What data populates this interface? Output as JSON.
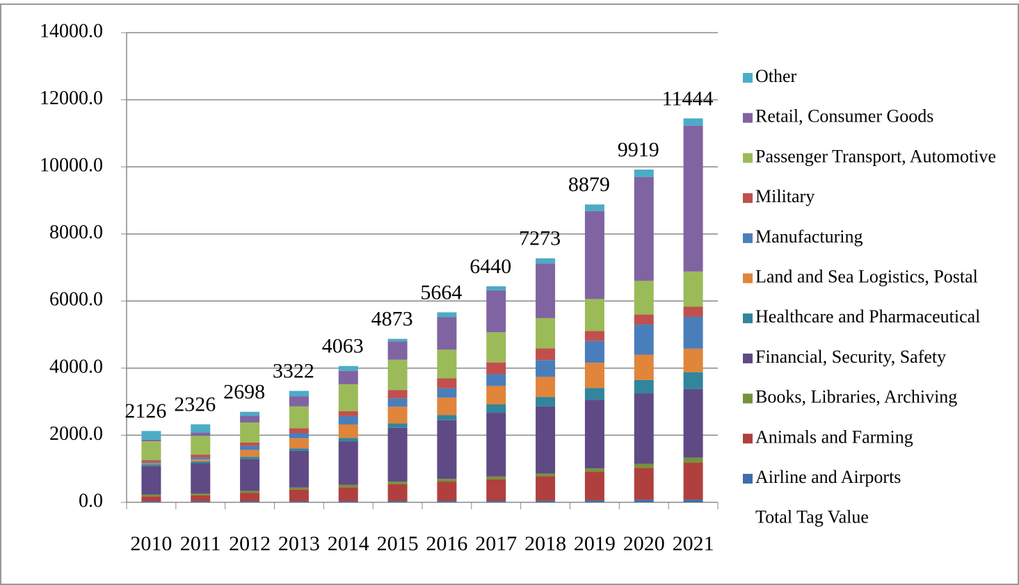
{
  "chart_data": {
    "type": "stacked_bar",
    "categories": [
      "2010",
      "2011",
      "2012",
      "2013",
      "2014",
      "2015",
      "2016",
      "2017",
      "2018",
      "2019",
      "2020",
      "2021"
    ],
    "series": [
      {
        "name": "Airline and Airports",
        "color": "#3d6ea8",
        "values": [
          30,
          30,
          30,
          30,
          30,
          40,
          40,
          40,
          50,
          60,
          80,
          80
        ]
      },
      {
        "name": "Animals and Farming",
        "color": "#b0403d",
        "values": [
          150,
          180,
          250,
          350,
          420,
          500,
          580,
          650,
          730,
          850,
          950,
          1100
        ]
      },
      {
        "name": "Books, Libraries, Archiving",
        "color": "#76923c",
        "values": [
          50,
          50,
          60,
          60,
          70,
          80,
          80,
          80,
          80,
          100,
          120,
          150
        ]
      },
      {
        "name": "Financial, Security, Safety",
        "color": "#5f4a85",
        "values": [
          850,
          900,
          950,
          1100,
          1300,
          1600,
          1750,
          1900,
          2000,
          2050,
          2100,
          2050
        ]
      },
      {
        "name": "Healthcare and Pharmaceutical",
        "color": "#31859c",
        "values": [
          50,
          60,
          70,
          70,
          100,
          130,
          150,
          250,
          280,
          350,
          400,
          500
        ]
      },
      {
        "name": "Land and Sea Logistics, Postal",
        "color": "#e0853a",
        "values": [
          40,
          60,
          200,
          300,
          400,
          500,
          520,
          550,
          600,
          750,
          750,
          700
        ]
      },
      {
        "name": "Manufacturing",
        "color": "#4a7ebb",
        "values": [
          40,
          60,
          120,
          150,
          250,
          250,
          280,
          350,
          500,
          650,
          900,
          950
        ]
      },
      {
        "name": "Military",
        "color": "#c0504d",
        "values": [
          50,
          80,
          100,
          150,
          150,
          250,
          300,
          350,
          350,
          300,
          300,
          300
        ]
      },
      {
        "name": "Passenger Transport, Automotive",
        "color": "#9bbb59",
        "values": [
          560,
          560,
          600,
          650,
          800,
          900,
          850,
          900,
          900,
          950,
          1000,
          1050
        ]
      },
      {
        "name": "Retail, Consumer Goods",
        "color": "#8064a2",
        "values": [
          50,
          100,
          200,
          300,
          400,
          550,
          970,
          1250,
          1630,
          2620,
          3100,
          4350
        ]
      },
      {
        "name": "Other",
        "color": "#4bacc6",
        "values": [
          256,
          246,
          118,
          162,
          143,
          73,
          144,
          120,
          153,
          199,
          219,
          214
        ]
      }
    ],
    "total": {
      "name": "Total Tag Value",
      "values": [
        2126,
        2326,
        2698,
        3322,
        4063,
        4873,
        5664,
        6440,
        7273,
        8879,
        9919,
        11444
      ]
    },
    "ylim": [
      0,
      14000
    ],
    "yticks": [
      {
        "value": 0,
        "label": "0.0"
      },
      {
        "value": 2000,
        "label": "2000.0"
      },
      {
        "value": 4000,
        "label": "4000.0"
      },
      {
        "value": 6000,
        "label": "6000.0"
      },
      {
        "value": 8000,
        "label": "8000.0"
      },
      {
        "value": 10000,
        "label": "10000.0"
      },
      {
        "value": 12000,
        "label": "12000.0"
      },
      {
        "value": 14000,
        "label": "14000.0"
      }
    ],
    "grid": true,
    "legend": "right"
  }
}
